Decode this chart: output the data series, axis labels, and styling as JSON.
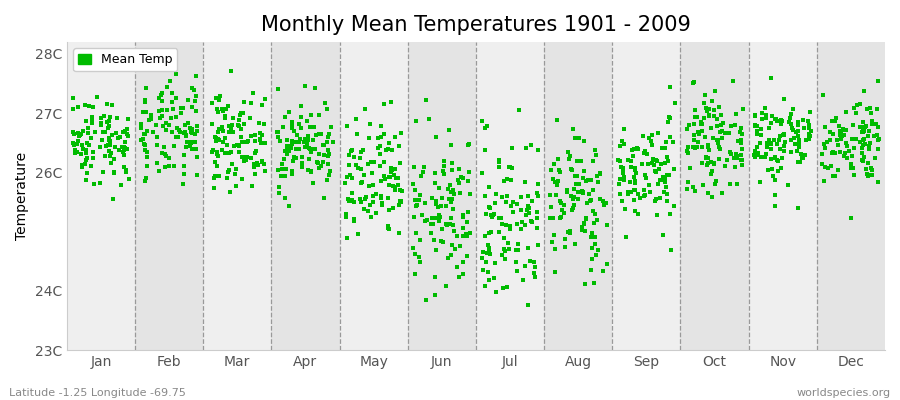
{
  "title": "Monthly Mean Temperatures 1901 - 2009",
  "ylabel": "Temperature",
  "xlabel_bottom_left": "Latitude -1.25 Longitude -69.75",
  "xlabel_bottom_right": "worldspecies.org",
  "legend_label": "Mean Temp",
  "dot_color": "#00bb00",
  "background_color": "#efefef",
  "background_color_alt": "#e4e4e4",
  "fig_background": "#ffffff",
  "ylim": [
    23.0,
    28.2
  ],
  "yticks": [
    23,
    24,
    26,
    27,
    28
  ],
  "ytick_labels": [
    "23C",
    "24C",
    "26C",
    "27C",
    "28C"
  ],
  "month_names": [
    "Jan",
    "Feb",
    "Mar",
    "Apr",
    "May",
    "Jun",
    "Jul",
    "Aug",
    "Sep",
    "Oct",
    "Nov",
    "Dec"
  ],
  "n_years": 109,
  "seed": 42,
  "monthly_means": [
    26.55,
    26.65,
    26.55,
    26.45,
    25.8,
    25.3,
    25.2,
    25.5,
    26.0,
    26.5,
    26.55,
    26.55
  ],
  "monthly_stds": [
    0.38,
    0.42,
    0.38,
    0.38,
    0.55,
    0.65,
    0.72,
    0.6,
    0.45,
    0.38,
    0.38,
    0.38
  ],
  "dot_size": 7,
  "dot_alpha": 1.0,
  "title_fontsize": 15,
  "axis_fontsize": 10,
  "tick_fontsize": 10,
  "legend_fontsize": 9
}
